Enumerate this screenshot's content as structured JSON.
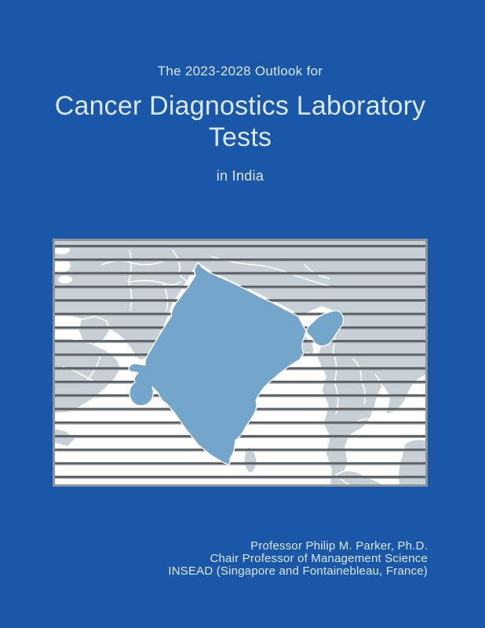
{
  "colors": {
    "background": "#1b57a9",
    "text": "#d9e8f6",
    "ocean": "#ffffff",
    "land": "#c7d0d7",
    "india": "#74a6cc",
    "stripe_dark": "#585d62",
    "stripe_light": "#a9aeb2",
    "frame": "#8d959b",
    "border_line": "#ffffff"
  },
  "header": {
    "series_title": "The 2023-2028 Outlook for",
    "title_lines": [
      "Cancer Diagnostics Laboratory",
      "Tests"
    ],
    "region": "in India"
  },
  "map": {
    "description": "india-region-map"
  },
  "credits": {
    "lines": [
      "Professor Philip M. Parker, Ph.D.",
      "Chair Professor of Management Science",
      "INSEAD (Singapore and Fontainebleau, France)"
    ]
  }
}
